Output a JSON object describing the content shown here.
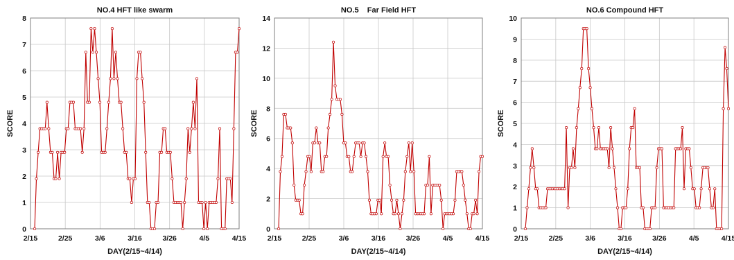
{
  "chart_data": [
    {
      "type": "line",
      "title": "NO.4 HFT like swarm",
      "xlabel": "DAY(2/15~4/14)",
      "ylabel": "SCORE",
      "xticks": [
        "2/15",
        "2/25",
        "3/6",
        "3/16",
        "3/26",
        "4/5",
        "4/15"
      ],
      "ylim": [
        0,
        8
      ],
      "yticks": [
        "0",
        "1",
        "2",
        "3",
        "4",
        "5",
        "6",
        "7",
        "8"
      ],
      "grid": true,
      "color": "#c00000",
      "values": [
        0,
        1.9,
        2.9,
        3.8,
        3.8,
        3.8,
        3.8,
        4.8,
        3.8,
        2.9,
        2.9,
        1.9,
        1.9,
        2.9,
        1.9,
        2.9,
        2.9,
        2.9,
        3.8,
        3.8,
        4.8,
        4.8,
        4.8,
        3.8,
        3.8,
        3.8,
        3.8,
        2.9,
        3.8,
        6.7,
        4.8,
        4.8,
        7.6,
        6.7,
        7.6,
        6.7,
        5.7,
        4.8,
        2.9,
        2.9,
        2.9,
        3.8,
        4.8,
        5.7,
        7.6,
        5.7,
        6.7,
        5.7,
        4.8,
        4.8,
        3.8,
        2.9,
        2.9,
        1.9,
        1.9,
        1.0,
        1.9,
        1.9,
        5.7,
        6.7,
        6.7,
        5.7,
        4.8,
        2.9,
        1.0,
        1.0,
        0,
        0,
        0,
        1.0,
        1.0,
        2.9,
        2.9,
        3.8,
        3.8,
        2.9,
        2.9,
        2.9,
        1.9,
        1.0,
        1.0,
        1.0,
        1.0,
        1.0,
        0,
        1.0,
        1.9,
        3.8,
        2.9,
        3.8,
        4.8,
        3.8,
        5.7,
        1.0,
        1.0,
        1.0,
        0,
        1.0,
        0,
        1.0,
        1.0,
        1.0,
        1.0,
        1.0,
        1.9,
        3.8,
        0,
        0,
        0,
        1.9,
        1.9,
        1.9,
        1.0,
        3.8,
        6.7,
        6.7,
        7.6
      ]
    },
    {
      "type": "line",
      "title": "NO.5    Far Field HFT",
      "xlabel": "DAY(2/15~4/14)",
      "ylabel": "SCORE",
      "xticks": [
        "2/15",
        "2/25",
        "3/6",
        "3/16",
        "3/26",
        "4/5",
        "4/15"
      ],
      "ylim": [
        0,
        14
      ],
      "yticks": [
        "0",
        "2",
        "4",
        "6",
        "8",
        "10",
        "12",
        "14"
      ],
      "grid": true,
      "color": "#c00000",
      "values": [
        0,
        3.8,
        4.8,
        7.6,
        7.6,
        6.7,
        6.7,
        6.7,
        5.7,
        2.9,
        1.9,
        1.9,
        1.9,
        1.0,
        1.0,
        2.9,
        3.8,
        4.8,
        4.8,
        3.8,
        5.7,
        5.7,
        6.7,
        5.7,
        5.7,
        3.8,
        3.8,
        4.8,
        4.8,
        6.7,
        7.6,
        8.6,
        12.4,
        9.5,
        8.6,
        8.6,
        8.6,
        7.6,
        5.7,
        5.7,
        4.8,
        4.8,
        3.8,
        3.8,
        4.8,
        5.7,
        5.7,
        5.7,
        4.8,
        5.7,
        5.7,
        4.8,
        3.8,
        1.9,
        1.0,
        1.0,
        1.0,
        1.0,
        1.9,
        1.9,
        1.0,
        4.8,
        5.7,
        4.8,
        4.8,
        2.9,
        1.9,
        1.0,
        1.0,
        1.9,
        1.0,
        0,
        1.0,
        1.9,
        3.8,
        4.8,
        5.7,
        3.8,
        5.7,
        3.8,
        1.0,
        1.0,
        1.0,
        1.0,
        1.0,
        1.0,
        2.9,
        2.9,
        4.8,
        1.0,
        2.9,
        2.9,
        2.9,
        2.9,
        2.9,
        1.9,
        0,
        1.0,
        1.0,
        1.0,
        1.0,
        1.0,
        1.0,
        1.9,
        3.8,
        3.8,
        3.8,
        3.8,
        2.9,
        1.9,
        1.0,
        0,
        0,
        1.0,
        1.0,
        1.9,
        1.0,
        3.8,
        4.8,
        4.8
      ]
    },
    {
      "type": "line",
      "title": "NO.6 Compound HFT",
      "xlabel": "DAY(2/15~4/14)",
      "ylabel": "SCORE",
      "xticks": [
        "2/15",
        "2/25",
        "3/6",
        "3/16",
        "3/26",
        "4/5",
        "4/15"
      ],
      "ylim": [
        0,
        10
      ],
      "yticks": [
        "0",
        "1",
        "2",
        "3",
        "4",
        "5",
        "6",
        "7",
        "8",
        "9",
        "10"
      ],
      "grid": true,
      "color": "#c00000",
      "values": [
        0,
        1.0,
        1.9,
        2.9,
        3.8,
        2.9,
        1.9,
        1.9,
        1.0,
        1.0,
        1.0,
        1.0,
        1.0,
        1.9,
        1.9,
        1.9,
        1.9,
        1.9,
        1.9,
        1.9,
        1.9,
        1.9,
        1.9,
        1.9,
        4.8,
        1.0,
        2.9,
        2.9,
        3.8,
        2.9,
        4.8,
        5.7,
        6.7,
        7.6,
        9.5,
        9.5,
        9.5,
        7.6,
        6.7,
        5.7,
        4.8,
        3.8,
        3.8,
        4.8,
        3.8,
        3.8,
        3.8,
        3.8,
        3.8,
        2.9,
        4.8,
        3.8,
        2.9,
        1.9,
        1.0,
        0,
        0,
        1.0,
        1.0,
        1.0,
        1.9,
        3.8,
        4.8,
        4.8,
        5.7,
        2.9,
        2.9,
        2.9,
        1.0,
        1.0,
        0,
        0,
        0,
        0,
        1.0,
        1.0,
        1.0,
        2.9,
        3.8,
        3.8,
        3.8,
        1.0,
        1.0,
        1.0,
        1.0,
        1.0,
        1.0,
        1.0,
        3.8,
        3.8,
        3.8,
        3.8,
        4.8,
        1.9,
        3.8,
        3.8,
        3.8,
        2.9,
        1.9,
        1.9,
        1.0,
        1.0,
        1.0,
        1.9,
        2.9,
        2.9,
        2.9,
        2.9,
        1.9,
        1.0,
        1.0,
        1.9,
        0,
        0,
        0,
        0,
        5.7,
        8.6,
        7.6,
        5.7
      ]
    }
  ]
}
